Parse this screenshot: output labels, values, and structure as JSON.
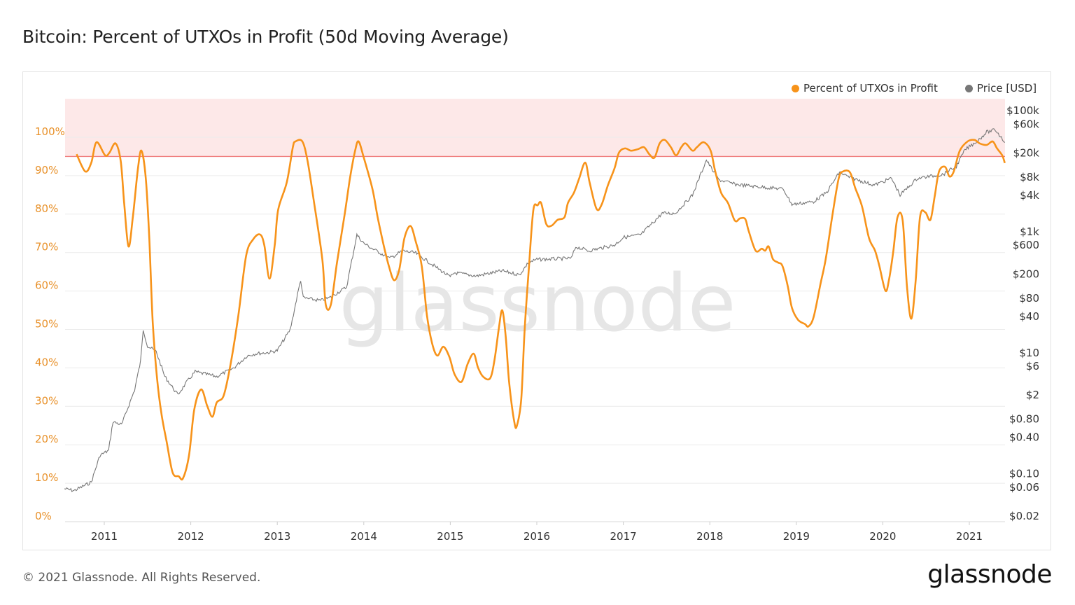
{
  "title": "Bitcoin: Percent of UTXOs in Profit (50d Moving Average)",
  "footer": "© 2021 Glassnode. All Rights Reserved.",
  "logo": "glassnode",
  "watermark": "glassnode",
  "legend": [
    {
      "label": "Percent of UTXOs in Profit",
      "color": "#f7931a"
    },
    {
      "label": "Price [USD]",
      "color": "#777777"
    }
  ],
  "chart_data": {
    "type": "line",
    "title": "Bitcoin: Percent of UTXOs in Profit (50d Moving Average)",
    "legend_position": "top-right",
    "grid": true,
    "x_axis": {
      "type": "date",
      "range": [
        "2010-07",
        "2021-07"
      ],
      "tick_labels": [
        "2011",
        "2012",
        "2013",
        "2014",
        "2015",
        "2016",
        "2017",
        "2018",
        "2019",
        "2020",
        "2021"
      ]
    },
    "y_axis_left": {
      "range": [
        0,
        110
      ],
      "unit": "%",
      "tick_labels": [
        "0%",
        "10%",
        "20%",
        "30%",
        "40%",
        "50%",
        "60%",
        "70%",
        "80%",
        "90%",
        "100%"
      ],
      "color": "#e8912a"
    },
    "y_axis_right": {
      "scale": "log",
      "range": [
        0.02,
        100000
      ],
      "tick_labels": [
        "$0.02",
        "$0.06",
        "$0.10",
        "$0.40",
        "$0.80",
        "$2",
        "$6",
        "$10",
        "$40",
        "$80",
        "$200",
        "$600",
        "$1k",
        "$4k",
        "$8k",
        "$20k",
        "$60k",
        "$100k"
      ],
      "tick_values": [
        0.02,
        0.06,
        0.1,
        0.4,
        0.8,
        2,
        6,
        10,
        40,
        80,
        200,
        600,
        1000,
        4000,
        8000,
        20000,
        60000,
        100000
      ]
    },
    "threshold_band": {
      "from": 95,
      "to": 110,
      "color": "#fde8e8",
      "line_color": "#f08080"
    },
    "series": [
      {
        "name": "Percent of UTXOs in Profit",
        "axis": "left",
        "color": "#f7931a",
        "points": [
          [
            2010.68,
            95.6
          ],
          [
            2010.78,
            91.1
          ],
          [
            2010.85,
            93.4
          ],
          [
            2010.91,
            98.7
          ],
          [
            2011.01,
            95.3
          ],
          [
            2011.06,
            96.0
          ],
          [
            2011.13,
            98.4
          ],
          [
            2011.19,
            93.8
          ],
          [
            2011.23,
            82.9
          ],
          [
            2011.28,
            71.6
          ],
          [
            2011.33,
            79.2
          ],
          [
            2011.39,
            92.0
          ],
          [
            2011.43,
            96.5
          ],
          [
            2011.48,
            89.3
          ],
          [
            2011.52,
            73.8
          ],
          [
            2011.56,
            51.9
          ],
          [
            2011.61,
            37.3
          ],
          [
            2011.66,
            28.2
          ],
          [
            2011.72,
            20.9
          ],
          [
            2011.79,
            12.8
          ],
          [
            2011.86,
            11.8
          ],
          [
            2011.91,
            11.3
          ],
          [
            2011.98,
            17.3
          ],
          [
            2012.04,
            29.1
          ],
          [
            2012.12,
            34.4
          ],
          [
            2012.19,
            30.1
          ],
          [
            2012.25,
            27.3
          ],
          [
            2012.3,
            31.0
          ],
          [
            2012.38,
            32.8
          ],
          [
            2012.46,
            41.0
          ],
          [
            2012.55,
            53.7
          ],
          [
            2012.64,
            69.2
          ],
          [
            2012.72,
            73.4
          ],
          [
            2012.8,
            74.7
          ],
          [
            2012.85,
            71.9
          ],
          [
            2012.91,
            63.2
          ],
          [
            2012.97,
            71.9
          ],
          [
            2013.01,
            81.1
          ],
          [
            2013.11,
            88.3
          ],
          [
            2013.18,
            97.4
          ],
          [
            2013.21,
            98.9
          ],
          [
            2013.29,
            98.9
          ],
          [
            2013.35,
            93.8
          ],
          [
            2013.42,
            83.8
          ],
          [
            2013.52,
            68.3
          ],
          [
            2013.56,
            56.5
          ],
          [
            2013.62,
            56.5
          ],
          [
            2013.69,
            67.4
          ],
          [
            2013.78,
            80.1
          ],
          [
            2013.84,
            89.3
          ],
          [
            2013.9,
            96.5
          ],
          [
            2013.94,
            98.9
          ],
          [
            2014.0,
            94.7
          ],
          [
            2014.1,
            86.5
          ],
          [
            2014.16,
            79.2
          ],
          [
            2014.23,
            71.9
          ],
          [
            2014.29,
            66.5
          ],
          [
            2014.35,
            62.8
          ],
          [
            2014.41,
            65.6
          ],
          [
            2014.47,
            73.8
          ],
          [
            2014.54,
            76.9
          ],
          [
            2014.6,
            72.9
          ],
          [
            2014.67,
            66.5
          ],
          [
            2014.73,
            53.7
          ],
          [
            2014.79,
            46.4
          ],
          [
            2014.85,
            43.2
          ],
          [
            2014.92,
            45.5
          ],
          [
            2014.99,
            42.8
          ],
          [
            2015.05,
            38.3
          ],
          [
            2015.13,
            36.4
          ],
          [
            2015.2,
            41.0
          ],
          [
            2015.27,
            43.7
          ],
          [
            2015.32,
            40.1
          ],
          [
            2015.38,
            37.7
          ],
          [
            2015.46,
            37.3
          ],
          [
            2015.51,
            41.9
          ],
          [
            2015.56,
            50.1
          ],
          [
            2015.6,
            55.0
          ],
          [
            2015.64,
            48.3
          ],
          [
            2015.68,
            36.4
          ],
          [
            2015.74,
            25.9
          ],
          [
            2015.77,
            25.0
          ],
          [
            2015.82,
            31.9
          ],
          [
            2015.86,
            50.1
          ],
          [
            2015.91,
            66.5
          ],
          [
            2015.96,
            81.1
          ],
          [
            2016.01,
            82.3
          ],
          [
            2016.05,
            82.9
          ],
          [
            2016.11,
            77.4
          ],
          [
            2016.17,
            77.0
          ],
          [
            2016.24,
            78.5
          ],
          [
            2016.32,
            79.2
          ],
          [
            2016.36,
            82.9
          ],
          [
            2016.43,
            85.6
          ],
          [
            2016.49,
            89.3
          ],
          [
            2016.56,
            93.4
          ],
          [
            2016.61,
            88.3
          ],
          [
            2016.69,
            81.4
          ],
          [
            2016.75,
            82.5
          ],
          [
            2016.82,
            87.4
          ],
          [
            2016.9,
            92.0
          ],
          [
            2016.95,
            96.0
          ],
          [
            2017.02,
            97.1
          ],
          [
            2017.09,
            96.5
          ],
          [
            2017.17,
            96.9
          ],
          [
            2017.24,
            97.4
          ],
          [
            2017.3,
            95.6
          ],
          [
            2017.36,
            94.7
          ],
          [
            2017.42,
            98.4
          ],
          [
            2017.48,
            99.3
          ],
          [
            2017.55,
            97.4
          ],
          [
            2017.61,
            95.3
          ],
          [
            2017.67,
            97.4
          ],
          [
            2017.72,
            98.4
          ],
          [
            2017.8,
            96.5
          ],
          [
            2017.85,
            97.4
          ],
          [
            2017.93,
            98.7
          ],
          [
            2018.01,
            96.5
          ],
          [
            2018.06,
            91.4
          ],
          [
            2018.13,
            85.6
          ],
          [
            2018.21,
            82.9
          ],
          [
            2018.29,
            78.3
          ],
          [
            2018.35,
            78.9
          ],
          [
            2018.41,
            78.7
          ],
          [
            2018.45,
            75.6
          ],
          [
            2018.53,
            70.5
          ],
          [
            2018.6,
            71.0
          ],
          [
            2018.64,
            70.5
          ],
          [
            2018.68,
            71.6
          ],
          [
            2018.73,
            68.3
          ],
          [
            2018.79,
            67.4
          ],
          [
            2018.84,
            66.5
          ],
          [
            2018.9,
            61.4
          ],
          [
            2018.95,
            55.6
          ],
          [
            2019.02,
            52.5
          ],
          [
            2019.1,
            51.4
          ],
          [
            2019.14,
            50.8
          ],
          [
            2019.2,
            53.2
          ],
          [
            2019.28,
            61.9
          ],
          [
            2019.34,
            68.3
          ],
          [
            2019.42,
            80.1
          ],
          [
            2019.49,
            89.3
          ],
          [
            2019.54,
            91.1
          ],
          [
            2019.62,
            90.9
          ],
          [
            2019.68,
            86.9
          ],
          [
            2019.76,
            82.0
          ],
          [
            2019.84,
            73.8
          ],
          [
            2019.91,
            70.5
          ],
          [
            2019.96,
            66.5
          ],
          [
            2020.03,
            60.1
          ],
          [
            2020.07,
            62.8
          ],
          [
            2020.12,
            70.1
          ],
          [
            2020.17,
            79.2
          ],
          [
            2020.23,
            78.3
          ],
          [
            2020.28,
            61.0
          ],
          [
            2020.33,
            52.8
          ],
          [
            2020.38,
            62.8
          ],
          [
            2020.43,
            79.2
          ],
          [
            2020.49,
            80.5
          ],
          [
            2020.55,
            78.5
          ],
          [
            2020.6,
            84.7
          ],
          [
            2020.65,
            91.1
          ],
          [
            2020.72,
            92.3
          ],
          [
            2020.77,
            89.8
          ],
          [
            2020.82,
            91.1
          ],
          [
            2020.89,
            96.5
          ],
          [
            2020.98,
            98.9
          ],
          [
            2021.06,
            99.3
          ],
          [
            2021.12,
            98.4
          ],
          [
            2021.2,
            98.0
          ],
          [
            2021.27,
            98.9
          ],
          [
            2021.32,
            97.1
          ],
          [
            2021.38,
            95.3
          ],
          [
            2021.41,
            93.3
          ]
        ]
      },
      {
        "name": "Price [USD]",
        "axis": "right",
        "color": "#777777",
        "points": [
          [
            2010.54,
            0.07
          ],
          [
            2010.65,
            0.065
          ],
          [
            2010.85,
            0.09
          ],
          [
            2010.95,
            0.25
          ],
          [
            2011.05,
            0.3
          ],
          [
            2011.1,
            0.9
          ],
          [
            2011.2,
            0.8
          ],
          [
            2011.35,
            3
          ],
          [
            2011.42,
            9
          ],
          [
            2011.45,
            30
          ],
          [
            2011.5,
            16
          ],
          [
            2011.6,
            13
          ],
          [
            2011.7,
            5
          ],
          [
            2011.85,
            2.5
          ],
          [
            2011.95,
            4
          ],
          [
            2012.05,
            6
          ],
          [
            2012.3,
            5
          ],
          [
            2012.5,
            7
          ],
          [
            2012.65,
            11
          ],
          [
            2012.75,
            12
          ],
          [
            2012.9,
            12.5
          ],
          [
            2013.0,
            13.5
          ],
          [
            2013.15,
            30
          ],
          [
            2013.27,
            200
          ],
          [
            2013.3,
            100
          ],
          [
            2013.5,
            90
          ],
          [
            2013.6,
            100
          ],
          [
            2013.8,
            150
          ],
          [
            2013.92,
            1100
          ],
          [
            2014.0,
            800
          ],
          [
            2014.1,
            650
          ],
          [
            2014.3,
            450
          ],
          [
            2014.45,
            600
          ],
          [
            2014.6,
            550
          ],
          [
            2014.8,
            350
          ],
          [
            2015.0,
            220
          ],
          [
            2015.05,
            260
          ],
          [
            2015.3,
            230
          ],
          [
            2015.6,
            280
          ],
          [
            2015.8,
            240
          ],
          [
            2015.9,
            380
          ],
          [
            2016.0,
            430
          ],
          [
            2016.4,
            450
          ],
          [
            2016.45,
            700
          ],
          [
            2016.6,
            600
          ],
          [
            2016.9,
            750
          ],
          [
            2017.0,
            1000
          ],
          [
            2017.2,
            1100
          ],
          [
            2017.45,
            2500
          ],
          [
            2017.6,
            2500
          ],
          [
            2017.8,
            5000
          ],
          [
            2017.96,
            19000
          ],
          [
            2018.1,
            9000
          ],
          [
            2018.3,
            7500
          ],
          [
            2018.5,
            7000
          ],
          [
            2018.85,
            6300
          ],
          [
            2018.95,
            3500
          ],
          [
            2019.2,
            3900
          ],
          [
            2019.35,
            5500
          ],
          [
            2019.5,
            12000
          ],
          [
            2019.6,
            10000
          ],
          [
            2019.9,
            7300
          ],
          [
            2020.1,
            9500
          ],
          [
            2020.2,
            5000
          ],
          [
            2020.4,
            9500
          ],
          [
            2020.7,
            11000
          ],
          [
            2020.85,
            15000
          ],
          [
            2020.95,
            28000
          ],
          [
            2021.1,
            40000
          ],
          [
            2021.2,
            55000
          ],
          [
            2021.3,
            60000
          ],
          [
            2021.37,
            45000
          ],
          [
            2021.41,
            37000
          ]
        ]
      }
    ]
  }
}
